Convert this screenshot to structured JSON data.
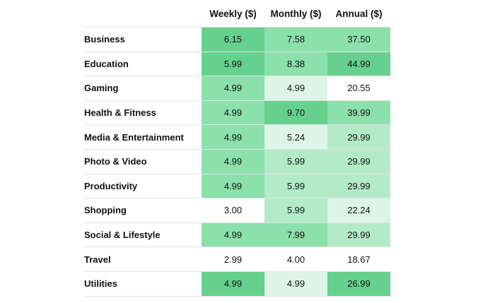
{
  "chart_data": {
    "type": "table",
    "columns": [
      "Weekly ($)",
      "Monthly ($)",
      "Annual ($)"
    ],
    "rows": [
      {
        "label": "Business",
        "values": [
          "6.15",
          "7.58",
          "37.50"
        ]
      },
      {
        "label": "Education",
        "values": [
          "5.99",
          "8.38",
          "44.99"
        ]
      },
      {
        "label": "Gaming",
        "values": [
          "4.99",
          "4.99",
          "20.55"
        ]
      },
      {
        "label": "Health & Fitness",
        "values": [
          "4.99",
          "9.70",
          "39.99"
        ]
      },
      {
        "label": "Media & Entertainment",
        "values": [
          "4.99",
          "5.24",
          "29.99"
        ]
      },
      {
        "label": "Photo & Video",
        "values": [
          "4.99",
          "5.99",
          "29.99"
        ]
      },
      {
        "label": "Productivity",
        "values": [
          "4.99",
          "5.99",
          "29.99"
        ]
      },
      {
        "label": "Shopping",
        "values": [
          "3.00",
          "5.99",
          "22.24"
        ]
      },
      {
        "label": "Social & Lifestyle",
        "values": [
          "4.99",
          "7.99",
          "29.99"
        ]
      },
      {
        "label": "Travel",
        "values": [
          "2.99",
          "4.00",
          "18.67"
        ]
      },
      {
        "label": "Utilities",
        "values": [
          "4.99",
          "4.99",
          "26.99"
        ]
      }
    ],
    "colors": {
      "dark": "#66d18e",
      "mid": "#8be0ab",
      "light": "#b3ebc9",
      "lightest": "#ddf5e6",
      "none": "#ffffff"
    },
    "cell_shades": [
      [
        "dark",
        "mid",
        "mid"
      ],
      [
        "dark",
        "mid",
        "dark"
      ],
      [
        "mid",
        "lightest",
        "none"
      ],
      [
        "mid",
        "dark",
        "mid"
      ],
      [
        "mid",
        "lightest",
        "light"
      ],
      [
        "mid",
        "light",
        "light"
      ],
      [
        "mid",
        "light",
        "light"
      ],
      [
        "none",
        "light",
        "lightest"
      ],
      [
        "mid",
        "mid",
        "light"
      ],
      [
        "none",
        "none",
        "none"
      ],
      [
        "dark",
        "lightest",
        "dark"
      ]
    ]
  }
}
